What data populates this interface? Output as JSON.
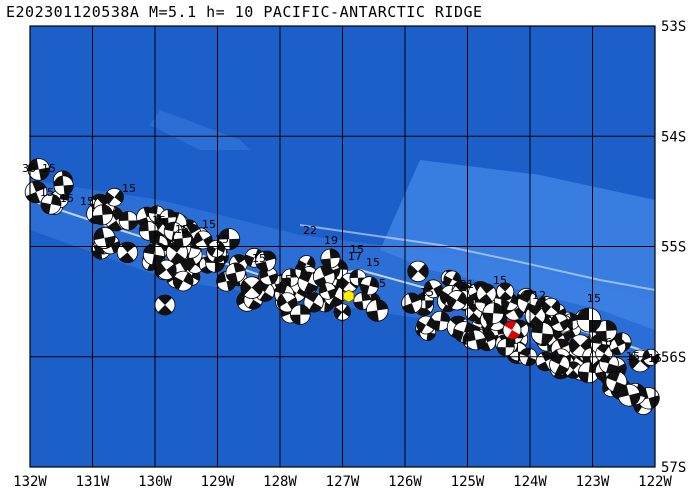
{
  "title": "E202301120538A M=5.1 h= 10 PACIFIC-ANTARCTIC RIDGE",
  "map": {
    "lon_range": [
      -132,
      -122
    ],
    "lat_range": [
      -57,
      -53
    ],
    "x_ticks": [
      "132W",
      "131W",
      "130W",
      "129W",
      "128W",
      "127W",
      "126W",
      "125W",
      "124W",
      "123W",
      "122W"
    ],
    "y_ticks": [
      "53S",
      "54S",
      "55S",
      "56S",
      "57S"
    ],
    "colors": {
      "ocean_deep": "#1d5fc9",
      "ocean_mid": "#2b6fd6",
      "ocean_shallow": "#3d83e3",
      "grid": "#000000",
      "plate_boundary": "#e8eef8",
      "event_marker": "#ffee00",
      "highlight_mechanism": "#e00000"
    },
    "epicenter": {
      "lon": -126.9,
      "lat": -55.45,
      "icon": "hexagon-icon"
    },
    "depth_labels": [
      "36",
      "15",
      "15",
      "15",
      "15",
      "15",
      "15",
      "15",
      "15",
      "15",
      "15",
      "15",
      "22",
      "19",
      "15",
      "17",
      "15",
      "15",
      "15",
      "21",
      "15",
      "12",
      "15",
      "16",
      "15",
      "15"
    ]
  }
}
